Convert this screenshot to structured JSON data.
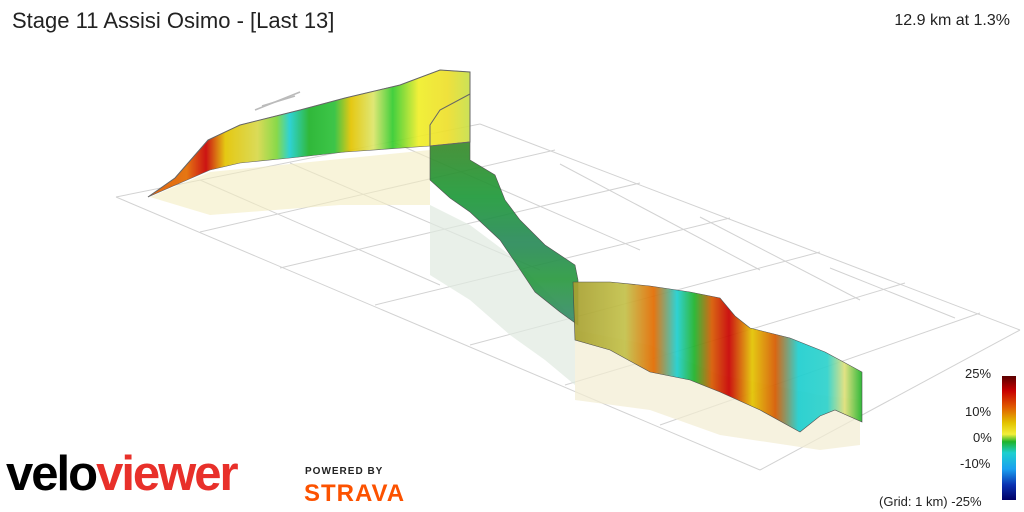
{
  "header": {
    "title": "Stage 11 Assisi Osimo - [Last 13]",
    "summary": "12.9 km at 1.3%"
  },
  "legend": {
    "labels": [
      "25%",
      "10%",
      "0%",
      "-10%",
      "-25%"
    ],
    "grid_note": "(Grid: 1 km)",
    "colors": [
      "#5a0000",
      "#c80000",
      "#e05a00",
      "#e3c400",
      "#f2ef3a",
      "#7fd63b",
      "#1fb32a",
      "#1ecfd0",
      "#1aa0f0",
      "#0a30b0",
      "#000066"
    ]
  },
  "branding": {
    "logo_part1": "velo",
    "logo_part2": "viewer",
    "powered_by": "POWERED BY",
    "partner": "STRAVA"
  },
  "icons": {
    "scene": "3d-elevation-profile",
    "legend": "gradient-color-scale"
  }
}
